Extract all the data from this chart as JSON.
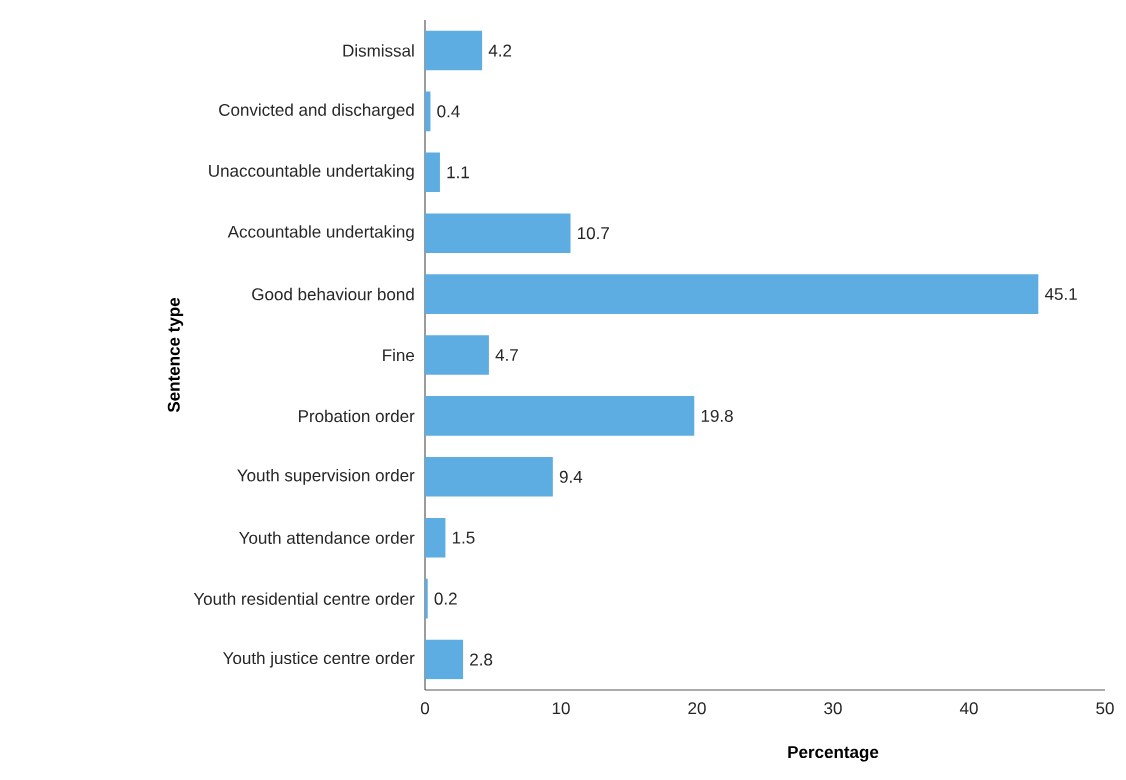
{
  "chart_data": {
    "type": "bar",
    "orientation": "horizontal",
    "xlabel": "Percentage",
    "ylabel": "Sentence type",
    "categories": [
      "Dismissal",
      "Convicted and discharged",
      "Unaccountable undertaking",
      "Accountable undertaking",
      "Good behaviour bond",
      "Fine",
      "Probation order",
      "Youth supervision order",
      "Youth attendance order",
      "Youth residential centre order",
      "Youth justice centre order"
    ],
    "values": [
      4.2,
      0.4,
      1.1,
      10.7,
      45.1,
      4.7,
      19.8,
      9.4,
      1.5,
      0.2,
      2.8
    ],
    "color": "#5dade2",
    "xlim": [
      0,
      50
    ],
    "xticks": [
      0,
      10,
      20,
      30,
      40,
      50
    ],
    "data_labels": true,
    "grid": false
  }
}
